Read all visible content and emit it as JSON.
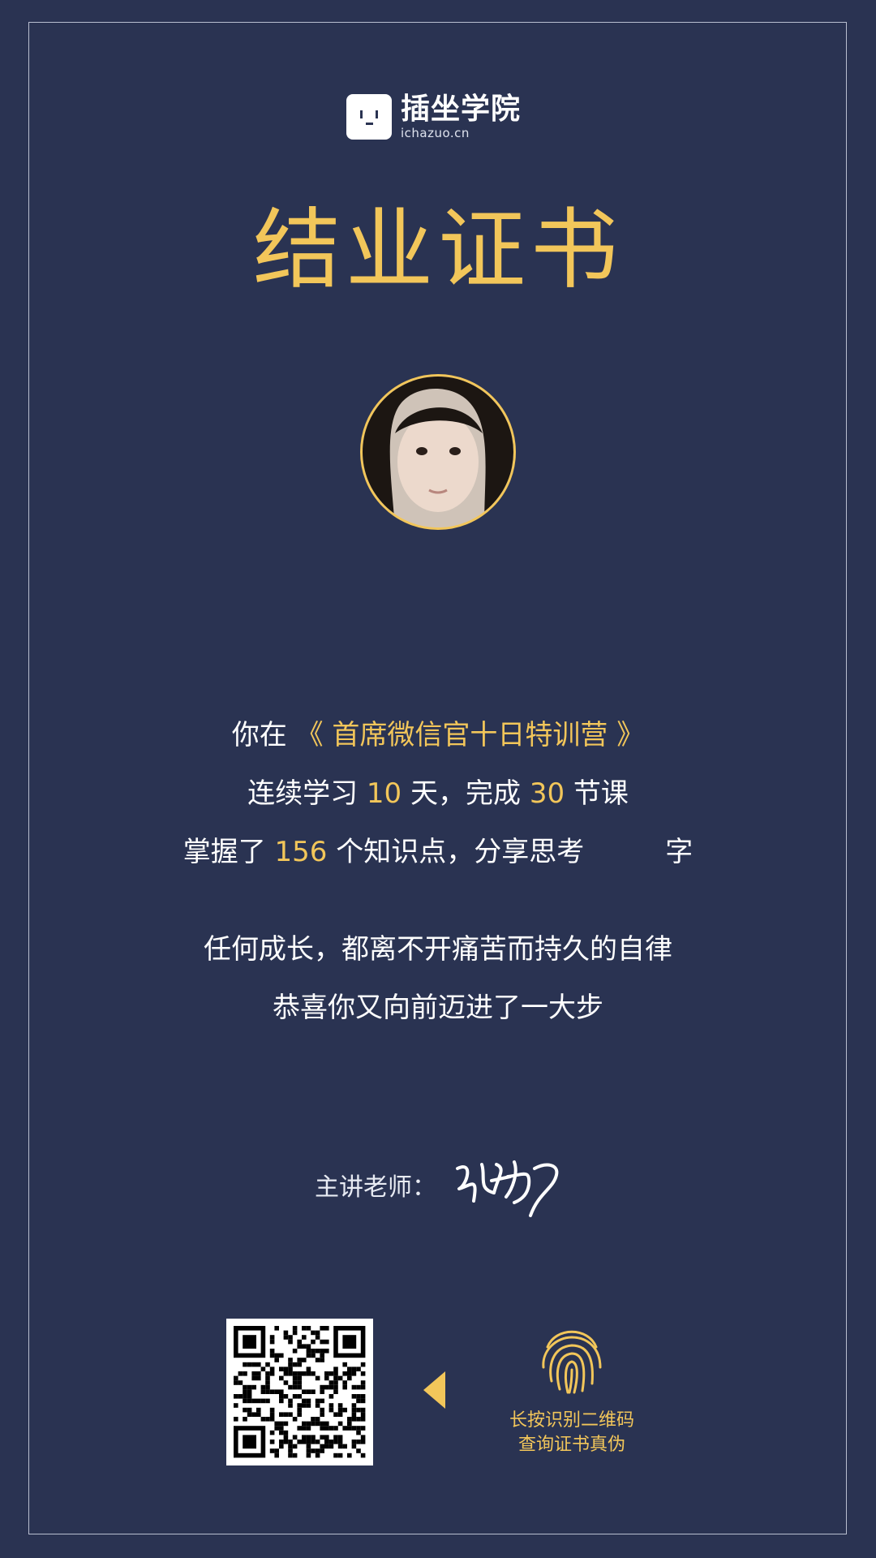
{
  "logo": {
    "name": "插坐学院",
    "url": "ichazuo.cn"
  },
  "title": "结业证书",
  "avatar_alt": "avatar",
  "line1": {
    "pre": "你在",
    "course": "《 首席微信官十日特训营 》"
  },
  "line2": {
    "pre": "连续学习",
    "days": "10",
    "mid": "天，完成",
    "lessons": "30",
    "post": "节课"
  },
  "line3": {
    "pre": "掌握了",
    "points": "156",
    "mid": "个知识点，分享思考",
    "words": "",
    "post": "字"
  },
  "motto1": "任何成长，都离不开痛苦而持久的自律",
  "motto2": "恭喜你又向前迈进了一大步",
  "teacher": {
    "label": "主讲老师：",
    "signature": "张左罗"
  },
  "qr_hint": {
    "line1": "长按识别二维码",
    "line2": "查询证书真伪"
  },
  "colors": {
    "background": "#2a3352",
    "accent": "#f2c65a"
  }
}
